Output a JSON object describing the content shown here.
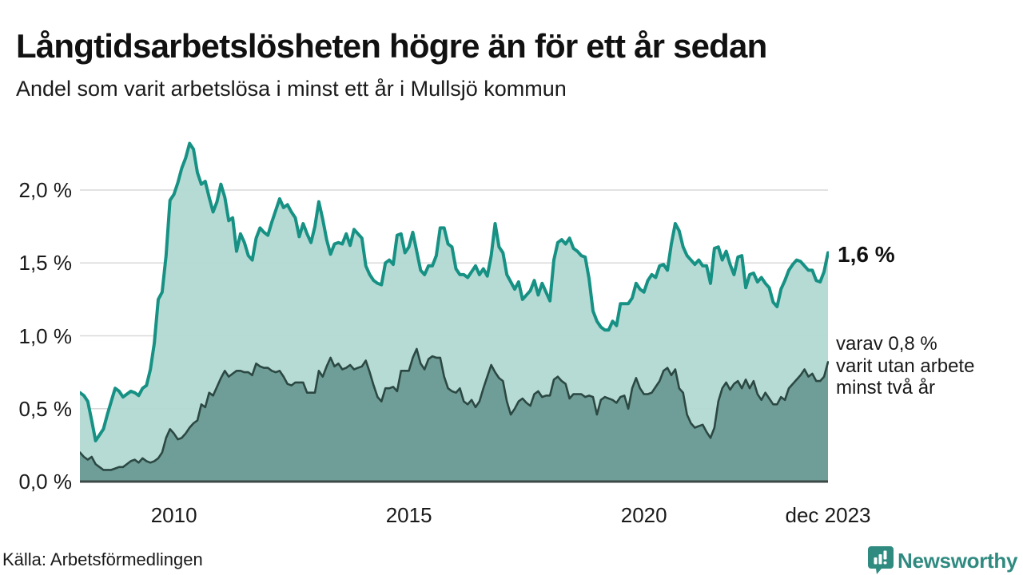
{
  "title": "Långtidsarbetslösheten högre än för ett år sedan",
  "subtitle": "Andel som varit arbetslösa i minst ett år i Mullsjö kommun",
  "annotations": {
    "end_value_main": "1,6 %",
    "end_note_lines": [
      "varav 0,8 %",
      "varit utan arbete",
      "minst två år"
    ]
  },
  "footer": {
    "source": "Källa: Arbetsförmedlingen",
    "brand": "Newsworthy"
  },
  "colors": {
    "line_one_year": "#169184",
    "fill_one_year": "#b0d8d2",
    "line_two_years": "#2c4843",
    "fill_two_years": "#6f9d97",
    "gridline": "#d9d9d9",
    "baseline": "#3b4846",
    "brand_teal": "#2f8a80"
  },
  "chart_data": {
    "type": "area",
    "title": "Långtidsarbetslösheten högre än för ett år sedan",
    "subtitle": "Andel som varit arbetslösa i minst ett år i Mullsjö kommun",
    "x_start": "2008-01",
    "x_end": "2023-12",
    "x_ticks": [
      {
        "label": "2010",
        "month": 24
      },
      {
        "label": "2015",
        "month": 84
      },
      {
        "label": "2020",
        "month": 144
      },
      {
        "label": "dec 2023",
        "month": 191
      }
    ],
    "y_ticks": [
      {
        "label": "0,0 %",
        "value": 0.0
      },
      {
        "label": "0,5 %",
        "value": 0.5
      },
      {
        "label": "1,0 %",
        "value": 1.0
      },
      {
        "label": "1,5 %",
        "value": 1.5
      },
      {
        "label": "2,0 %",
        "value": 2.0
      }
    ],
    "ylim": [
      0,
      2.4
    ],
    "grid": true,
    "unit": "%",
    "series": [
      {
        "name": "Andel arbetslösa minst ett år",
        "end_label": "1,6 %",
        "end_value": 1.6,
        "values": [
          0.61,
          0.59,
          0.55,
          0.42,
          0.28,
          0.32,
          0.36,
          0.46,
          0.55,
          0.64,
          0.62,
          0.58,
          0.6,
          0.62,
          0.61,
          0.59,
          0.64,
          0.66,
          0.77,
          0.95,
          1.25,
          1.3,
          1.55,
          1.93,
          1.97,
          2.05,
          2.15,
          2.22,
          2.32,
          2.28,
          2.12,
          2.04,
          2.06,
          1.95,
          1.85,
          1.92,
          2.04,
          1.95,
          1.79,
          1.81,
          1.58,
          1.7,
          1.64,
          1.55,
          1.52,
          1.67,
          1.74,
          1.71,
          1.69,
          1.78,
          1.86,
          1.94,
          1.88,
          1.9,
          1.85,
          1.81,
          1.68,
          1.77,
          1.7,
          1.64,
          1.75,
          1.92,
          1.8,
          1.66,
          1.56,
          1.63,
          1.64,
          1.63,
          1.7,
          1.62,
          1.73,
          1.7,
          1.67,
          1.48,
          1.42,
          1.38,
          1.36,
          1.35,
          1.5,
          1.52,
          1.49,
          1.69,
          1.7,
          1.57,
          1.61,
          1.71,
          1.58,
          1.45,
          1.42,
          1.48,
          1.48,
          1.55,
          1.74,
          1.74,
          1.63,
          1.61,
          1.46,
          1.42,
          1.42,
          1.4,
          1.44,
          1.48,
          1.42,
          1.46,
          1.41,
          1.55,
          1.77,
          1.61,
          1.57,
          1.42,
          1.37,
          1.32,
          1.37,
          1.25,
          1.28,
          1.31,
          1.38,
          1.28,
          1.36,
          1.3,
          1.24,
          1.52,
          1.64,
          1.66,
          1.63,
          1.67,
          1.6,
          1.58,
          1.55,
          1.54,
          1.39,
          1.17,
          1.1,
          1.06,
          1.04,
          1.04,
          1.1,
          1.07,
          1.22,
          1.22,
          1.22,
          1.26,
          1.36,
          1.32,
          1.3,
          1.38,
          1.42,
          1.4,
          1.48,
          1.49,
          1.45,
          1.63,
          1.77,
          1.72,
          1.61,
          1.55,
          1.52,
          1.49,
          1.52,
          1.48,
          1.48,
          1.36,
          1.6,
          1.61,
          1.52,
          1.58,
          1.49,
          1.42,
          1.54,
          1.55,
          1.33,
          1.42,
          1.43,
          1.37,
          1.4,
          1.36,
          1.33,
          1.23,
          1.2,
          1.32,
          1.38,
          1.45,
          1.49,
          1.52,
          1.51,
          1.48,
          1.45,
          1.45,
          1.38,
          1.37,
          1.44,
          1.57
        ]
      },
      {
        "name": "varav utan arbete minst två år",
        "end_label": "varav 0,8 % varit utan arbete minst två år",
        "end_value": 0.8,
        "values": [
          0.2,
          0.17,
          0.15,
          0.17,
          0.12,
          0.1,
          0.08,
          0.08,
          0.08,
          0.09,
          0.1,
          0.1,
          0.12,
          0.14,
          0.15,
          0.13,
          0.16,
          0.14,
          0.13,
          0.14,
          0.16,
          0.2,
          0.3,
          0.36,
          0.33,
          0.29,
          0.3,
          0.33,
          0.37,
          0.4,
          0.42,
          0.53,
          0.51,
          0.61,
          0.59,
          0.65,
          0.71,
          0.76,
          0.72,
          0.74,
          0.76,
          0.76,
          0.75,
          0.75,
          0.73,
          0.81,
          0.79,
          0.78,
          0.78,
          0.76,
          0.75,
          0.76,
          0.72,
          0.67,
          0.66,
          0.68,
          0.68,
          0.68,
          0.61,
          0.61,
          0.61,
          0.76,
          0.72,
          0.79,
          0.85,
          0.79,
          0.81,
          0.77,
          0.78,
          0.8,
          0.77,
          0.78,
          0.79,
          0.83,
          0.75,
          0.66,
          0.58,
          0.55,
          0.64,
          0.64,
          0.65,
          0.62,
          0.76,
          0.76,
          0.76,
          0.85,
          0.91,
          0.81,
          0.77,
          0.84,
          0.86,
          0.85,
          0.85,
          0.72,
          0.64,
          0.62,
          0.61,
          0.64,
          0.55,
          0.53,
          0.56,
          0.51,
          0.55,
          0.64,
          0.72,
          0.8,
          0.75,
          0.71,
          0.69,
          0.55,
          0.46,
          0.5,
          0.55,
          0.57,
          0.54,
          0.52,
          0.6,
          0.62,
          0.58,
          0.59,
          0.59,
          0.7,
          0.72,
          0.69,
          0.67,
          0.57,
          0.6,
          0.6,
          0.6,
          0.58,
          0.59,
          0.58,
          0.46,
          0.56,
          0.58,
          0.57,
          0.56,
          0.54,
          0.58,
          0.59,
          0.5,
          0.64,
          0.71,
          0.64,
          0.6,
          0.6,
          0.61,
          0.65,
          0.69,
          0.76,
          0.78,
          0.73,
          0.77,
          0.64,
          0.61,
          0.46,
          0.4,
          0.37,
          0.38,
          0.39,
          0.34,
          0.3,
          0.37,
          0.55,
          0.64,
          0.68,
          0.63,
          0.67,
          0.69,
          0.64,
          0.7,
          0.64,
          0.69,
          0.6,
          0.56,
          0.61,
          0.57,
          0.53,
          0.53,
          0.58,
          0.56,
          0.64,
          0.67,
          0.7,
          0.73,
          0.77,
          0.72,
          0.74,
          0.69,
          0.69,
          0.72,
          0.82
        ]
      }
    ]
  }
}
